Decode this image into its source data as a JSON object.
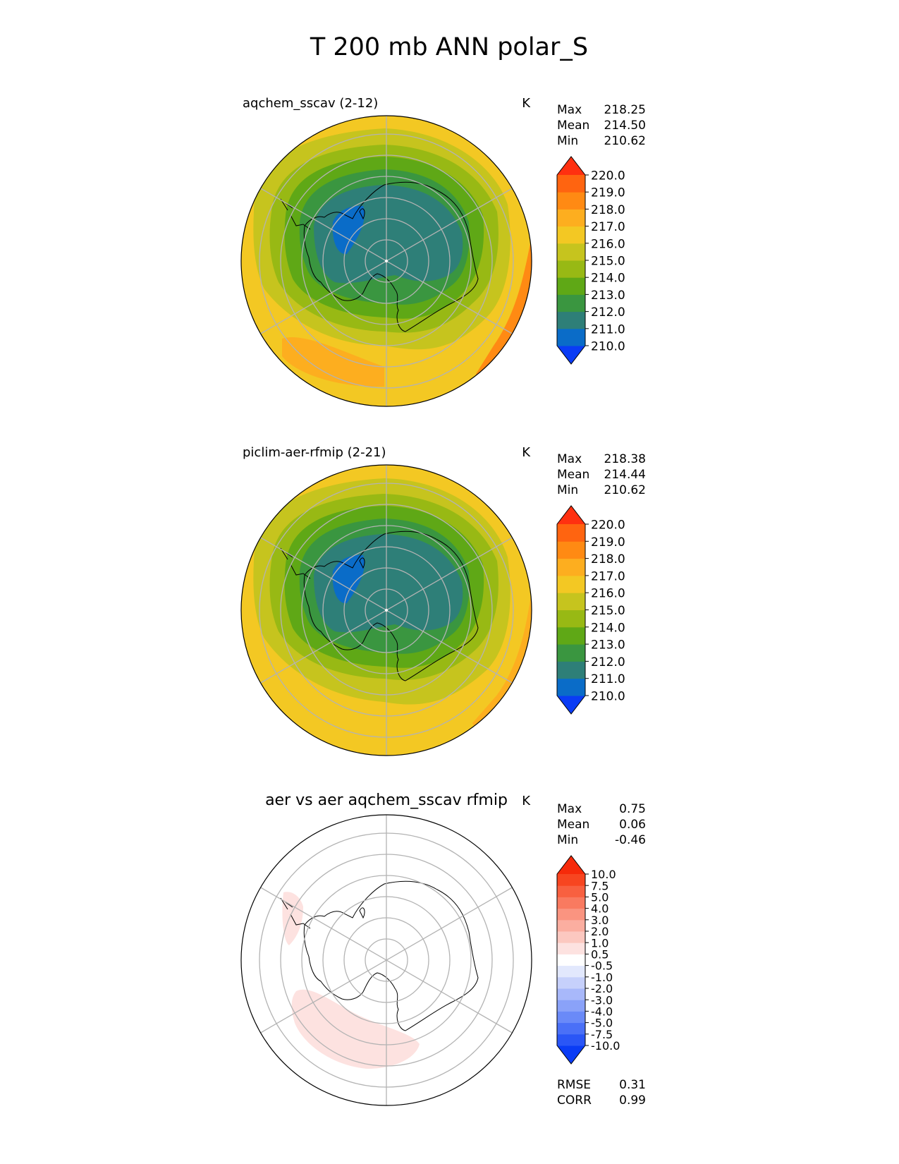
{
  "figure_title": "T 200 mb ANN polar_S",
  "chart_data": [
    {
      "type": "heatmap",
      "projection": "south-polar-stereographic",
      "title": "aqchem_sscav (2-12)",
      "units": "K",
      "stats": [
        {
          "label": "Max",
          "value": "218.25"
        },
        {
          "label": "Mean",
          "value": "214.50"
        },
        {
          "label": "Min",
          "value": "210.62"
        }
      ],
      "colorbar": {
        "levels": [
          "210.0",
          "211.0",
          "212.0",
          "213.0",
          "214.0",
          "215.0",
          "216.0",
          "217.0",
          "218.0",
          "219.0",
          "220.0"
        ],
        "colors": [
          "#0a3cf5",
          "#0a6cc8",
          "#2e7f78",
          "#3a9640",
          "#5fa816",
          "#98b914",
          "#c6c41e",
          "#f3c823",
          "#fdae1f",
          "#ff8a13",
          "#ff6410",
          "#ff3010"
        ],
        "extend": "both"
      },
      "field": {
        "background": "#f3c823",
        "contours": [
          {
            "level": "216.0",
            "color": "#c6c41e"
          },
          {
            "level": "215.0",
            "color": "#98b914"
          },
          {
            "level": "214.0",
            "color": "#5fa816"
          },
          {
            "level": "213.0",
            "color": "#3a9640"
          },
          {
            "level": "212.0",
            "color": "#2e7f78"
          },
          {
            "level": "211.0",
            "color": "#0a6cc8"
          }
        ],
        "warm_patches": [
          "#fdae1f",
          "#ff8a13"
        ]
      }
    },
    {
      "type": "heatmap",
      "projection": "south-polar-stereographic",
      "title": "piclim-aer-rfmip (2-21)",
      "units": "K",
      "stats": [
        {
          "label": "Max",
          "value": "218.38"
        },
        {
          "label": "Mean",
          "value": "214.44"
        },
        {
          "label": "Min",
          "value": "210.62"
        }
      ],
      "colorbar": {
        "levels": [
          "210.0",
          "211.0",
          "212.0",
          "213.0",
          "214.0",
          "215.0",
          "216.0",
          "217.0",
          "218.0",
          "219.0",
          "220.0"
        ],
        "colors": [
          "#0a3cf5",
          "#0a6cc8",
          "#2e7f78",
          "#3a9640",
          "#5fa816",
          "#98b914",
          "#c6c41e",
          "#f3c823",
          "#fdae1f",
          "#ff8a13",
          "#ff6410",
          "#ff3010"
        ],
        "extend": "both"
      },
      "field": {
        "background": "#f3c823",
        "contours": [
          {
            "level": "216.0",
            "color": "#c6c41e"
          },
          {
            "level": "215.0",
            "color": "#98b914"
          },
          {
            "level": "214.0",
            "color": "#5fa816"
          },
          {
            "level": "213.0",
            "color": "#3a9640"
          },
          {
            "level": "212.0",
            "color": "#2e7f78"
          },
          {
            "level": "211.0",
            "color": "#0a6cc8"
          }
        ],
        "warm_patches": [
          "#fdae1f"
        ]
      }
    },
    {
      "type": "heatmap",
      "projection": "south-polar-stereographic",
      "title": "aer vs aer aqchem_sscav rfmip",
      "units": "K",
      "stats": [
        {
          "label": "Max",
          "value": "0.75"
        },
        {
          "label": "Mean",
          "value": "0.06"
        },
        {
          "label": "Min",
          "value": "-0.46"
        }
      ],
      "metrics": [
        {
          "label": "RMSE",
          "value": "0.31"
        },
        {
          "label": "CORR",
          "value": "0.99"
        }
      ],
      "colorbar": {
        "levels": [
          "-10.0",
          "-7.5",
          "-5.0",
          "-4.0",
          "-3.0",
          "-2.0",
          "-1.0",
          "-0.5",
          "0.5",
          "1.0",
          "2.0",
          "3.0",
          "4.0",
          "5.0",
          "7.5",
          "10.0"
        ],
        "colors": [
          "#0a3cf5",
          "#2a56f6",
          "#4a70f7",
          "#6a8af8",
          "#8aa2f9",
          "#a8b8fa",
          "#c6d0fb",
          "#e2e8fd",
          "#ffffff",
          "#fde2e0",
          "#fcc8c0",
          "#fbaea0",
          "#fa9480",
          "#f97a60",
          "#f86040",
          "#f74520",
          "#f62a0a"
        ],
        "extend": "both"
      },
      "field": {
        "background": "#ffffff",
        "positive_patch_color": "#fde2e0",
        "patch_label": "0.5"
      }
    }
  ]
}
